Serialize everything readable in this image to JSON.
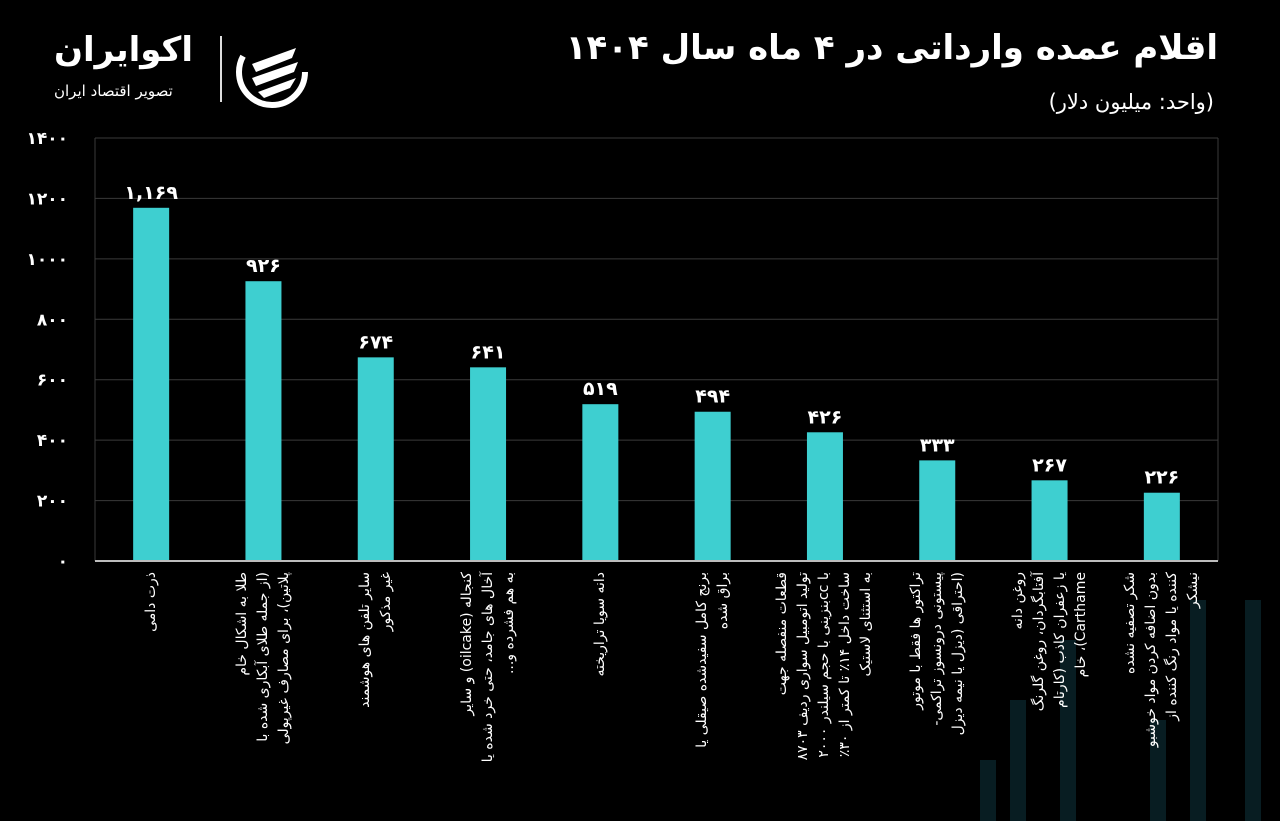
{
  "header": {
    "title": "اقلام عمده وارداتی در ۴ ماه سال ۱۴۰۴",
    "subtitle": "(واحد: میلیون دلار)"
  },
  "logo": {
    "name": "اکوایران",
    "tagline": "تصویر اقتصاد ایران"
  },
  "colors": {
    "bar": "#3ecfd0",
    "grid": "#3a3a3a",
    "axis": "#bdbdbd",
    "background": "#000000"
  },
  "chart_data": {
    "type": "bar",
    "title": "اقلام عمده وارداتی در ۴ ماه سال ۱۴۰۴",
    "ylabel": "میلیون دلار",
    "ylim": [
      0,
      1400
    ],
    "grid": true,
    "yticks": [
      0,
      200,
      400,
      600,
      800,
      1000,
      1200,
      1400
    ],
    "ytick_labels": [
      "۰",
      "۲۰۰",
      "۴۰۰",
      "۶۰۰",
      "۸۰۰",
      "۱۰۰۰",
      "۱۲۰۰",
      "۱۴۰۰"
    ],
    "categories": [
      "ذرت دامی",
      "طلا به اشکال خام\n(از جمله طلای آبکاری شده با\nپلاتین)، برای مصارف غیرپولی",
      "سایر تلفن های هوشمند\nغیر مذکور",
      "کنجاله (oilcake) و سایر\nآخال های جامد، حتی خرد شده یا\nبه هم فشرده و...",
      "دانه سویا تراریخته",
      "برنج کامل سفیدشده صیقلی یا\nبراق شده",
      "قطعات منفصله جهت\nتولید اتومبیل سواری ردیف ۸۷۰۳\nبا ccبنزینی با حجم سیلندر ۲۰۰۰\nساخت داخل ۱۴٪ تا کمتر از ۳۰٪\nبه استثنای لاستیک",
      "تراکتور ها فقط با موتور\nپیستونی درونسوز تراکمی-\n(احتراقی (دیزل یا نیمه دیزل",
      "روغن دانه\nآفتابگردان، روغن گلرنگ\nیا زعفران کاذب (کارتام\nCarthame)، خام",
      "شکر تصفیه نشده\nبدون اضافه کردن مواد خوشبو\nکننده یا مواد رنگ کننده از\nنیشکر"
    ],
    "values": [
      1169,
      926,
      674,
      641,
      519,
      494,
      426,
      333,
      267,
      226
    ],
    "value_labels": [
      "۱,۱۶۹",
      "۹۲۶",
      "۶۷۴",
      "۶۴۱",
      "۵۱۹",
      "۴۹۴",
      "۴۲۶",
      "۳۳۳",
      "۲۶۷",
      "۲۲۶"
    ]
  }
}
